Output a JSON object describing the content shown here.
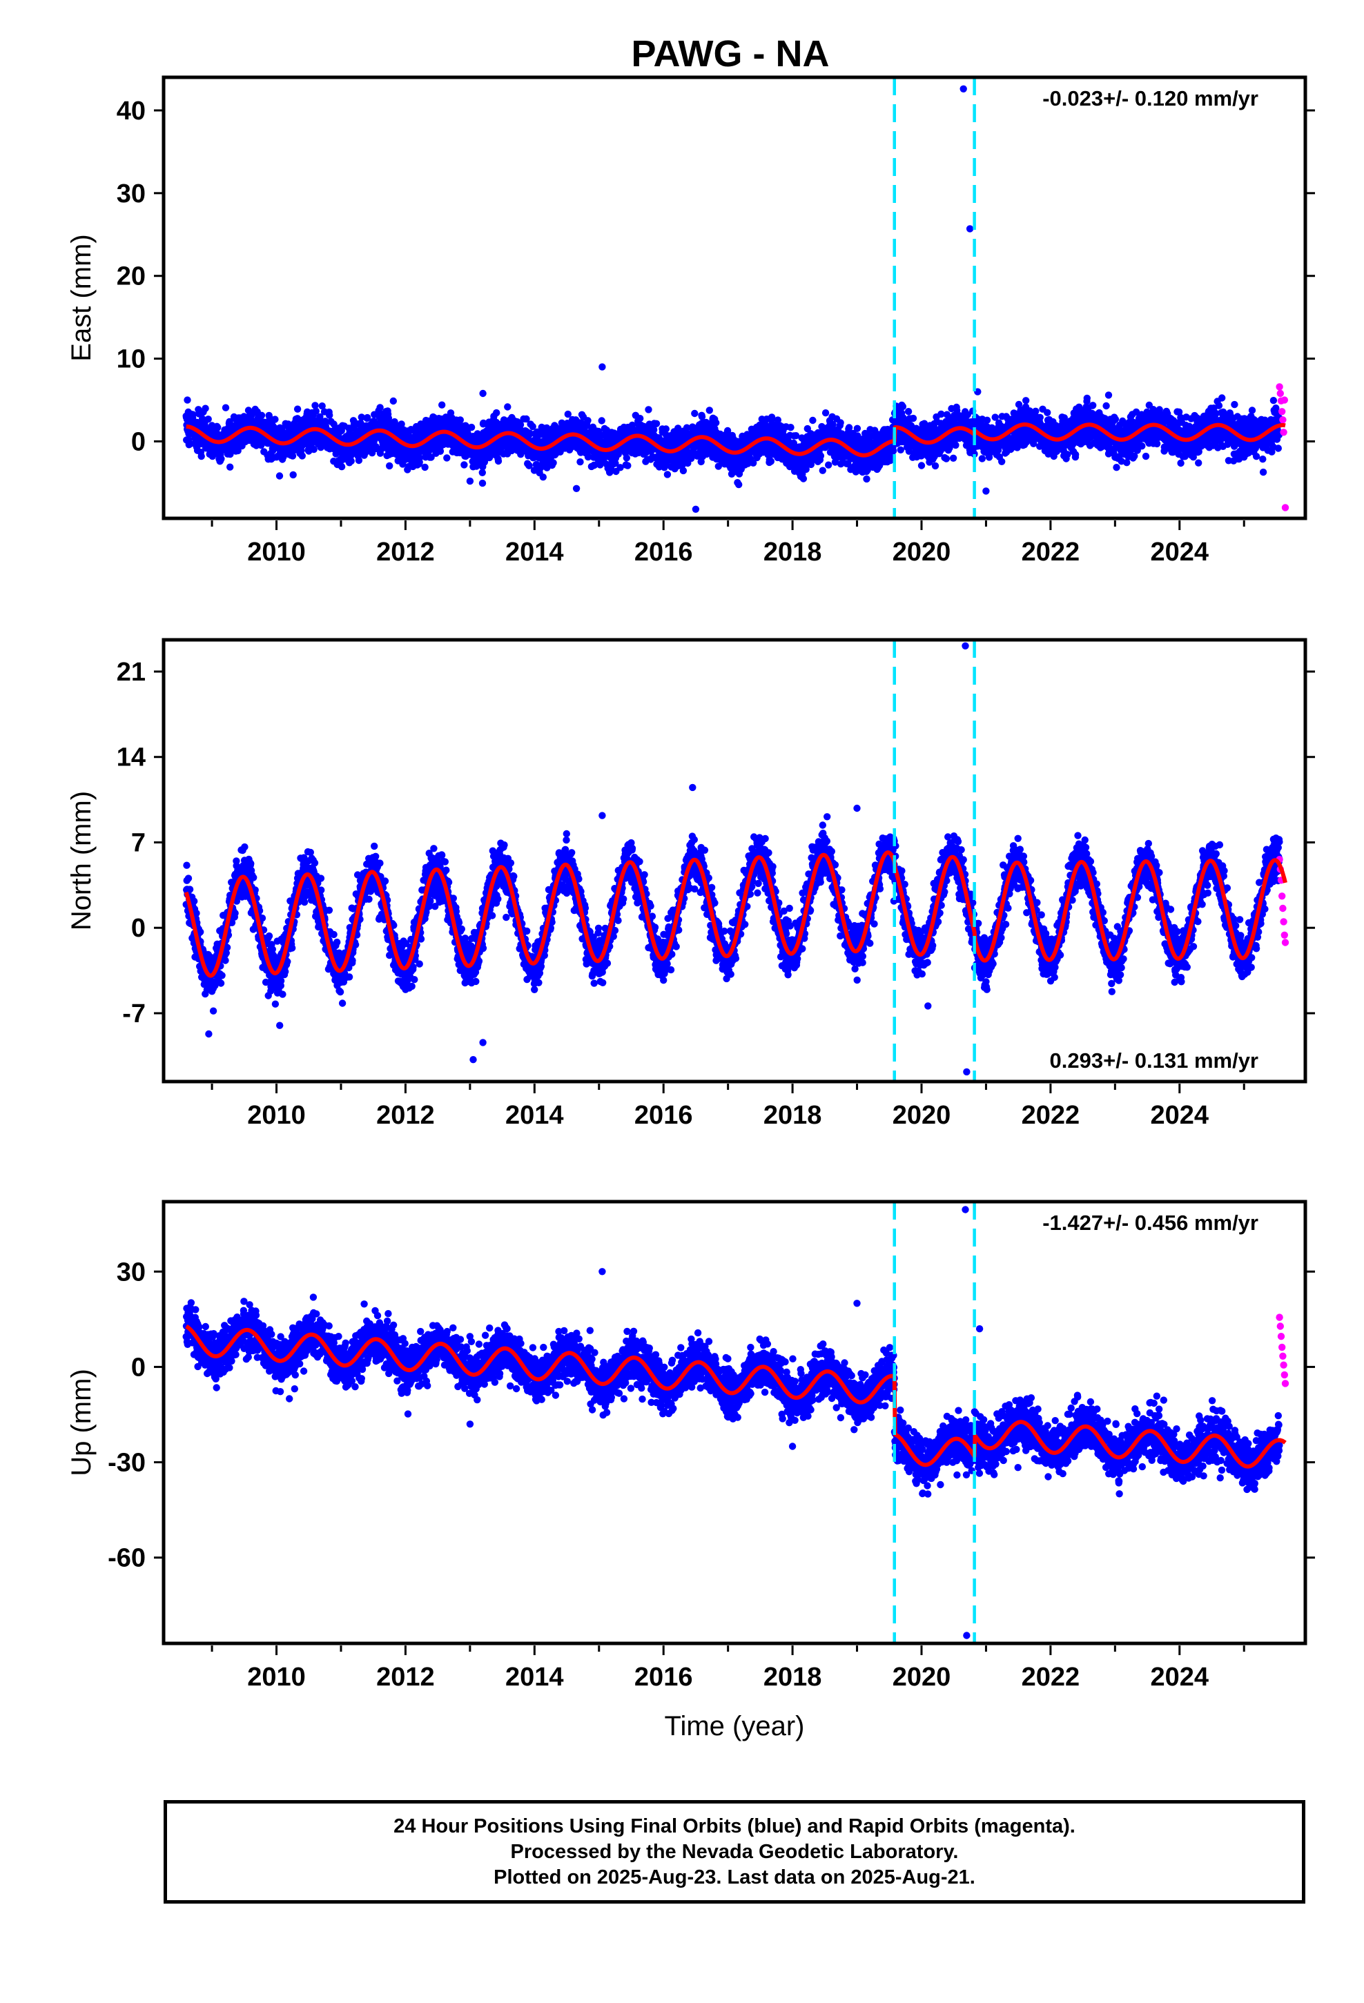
{
  "chart_data": {
    "type": "scatter",
    "title": "PAWG - NA",
    "xlabel": "Time (year)",
    "xlim": [
      2008.25,
      2025.95
    ],
    "x_ticks": [
      2010,
      2012,
      2014,
      2016,
      2018,
      2020,
      2022,
      2024
    ],
    "x_tick_labels": [
      "2010",
      "2012",
      "2014",
      "2016",
      "2018",
      "2020",
      "2022",
      "2024"
    ],
    "data_start": 2008.6,
    "rapid_start": 2025.55,
    "data_end": 2025.64,
    "offset_epochs": [
      2019.58,
      2020.82
    ],
    "series": [
      {
        "name": "Final Orbits",
        "color": "#0000ff"
      },
      {
        "name": "Rapid Orbits",
        "color": "#ff00ff"
      }
    ],
    "model_color": "#ff0000",
    "offset_line_color": "#00e5ff",
    "panels": [
      {
        "ylabel": "East (mm)",
        "ylim": [
          -9.3,
          44
        ],
        "y_ticks": [
          0,
          10,
          20,
          30,
          40
        ],
        "y_tick_labels": [
          "0",
          "10",
          "20",
          "30",
          "40"
        ],
        "rate_label": "-0.023+/- 0.120 mm/yr",
        "rate_position": "top-right",
        "model": {
          "segments": [
            {
              "start": 2008.6,
              "end": 2019.58,
              "a": 0.9,
              "b": -0.16
            },
            {
              "start": 2019.58,
              "end": 2020.82,
              "a": 1.9,
              "b": -0.1
            },
            {
              "start": 2020.82,
              "end": 2025.64,
              "a": 1.4,
              "b": -0.02
            }
          ],
          "annual_amplitude": 0.9,
          "annual_phase": 0.6
        },
        "scatter_sd": 1.15,
        "outliers": [
          [
            2020.65,
            42.6
          ],
          [
            2020.75,
            25.7
          ],
          [
            2020.87,
            6.0
          ],
          [
            2015.05,
            9.0
          ],
          [
            2013.2,
            5.8
          ],
          [
            2014.65,
            -5.7
          ],
          [
            2016.5,
            -8.2
          ],
          [
            2021.0,
            -6.0
          ],
          [
            2013.0,
            -4.8
          ],
          [
            2022.9,
            5.6
          ]
        ],
        "rapid_values": [
          6.6,
          5.8,
          4.9,
          3.6,
          2.6,
          1.1,
          5.0,
          -8.0
        ]
      },
      {
        "ylabel": "North (mm)",
        "ylim": [
          -12.6,
          23.6
        ],
        "y_ticks": [
          -7,
          0,
          7,
          14,
          21
        ],
        "y_tick_labels": [
          "-7",
          "0",
          "7",
          "14",
          "21"
        ],
        "rate_label": "0.293+/- 0.131 mm/yr",
        "rate_position": "bottom-right",
        "model": {
          "segments": [
            {
              "start": 2008.6,
              "end": 2019.58,
              "a": 0.0,
              "b": 0.2
            },
            {
              "start": 2019.58,
              "end": 2020.82,
              "a": 1.8,
              "b": 0.0
            },
            {
              "start": 2020.82,
              "end": 2025.64,
              "a": 0.7,
              "b": 0.05
            }
          ],
          "annual_amplitude": 4.0,
          "annual_phase": 0.48
        },
        "scatter_sd": 0.95,
        "outliers": [
          [
            2020.68,
            23.1
          ],
          [
            2020.7,
            -11.8
          ],
          [
            2016.45,
            11.5
          ],
          [
            2013.05,
            -10.8
          ],
          [
            2013.2,
            -9.4
          ],
          [
            2015.05,
            9.2
          ],
          [
            2008.95,
            -8.7
          ],
          [
            2010.05,
            -8.0
          ],
          [
            2019.0,
            9.8
          ],
          [
            2020.1,
            -6.4
          ]
        ],
        "rapid_values": [
          5.6,
          4.8,
          3.9,
          2.6,
          1.6,
          0.5,
          -0.6,
          -1.2
        ]
      },
      {
        "ylabel": "Up (mm)",
        "ylim": [
          -87,
          52
        ],
        "y_ticks": [
          -60,
          -30,
          0,
          30
        ],
        "y_tick_labels": [
          "-60",
          "-30",
          "0",
          "30"
        ],
        "rate_label": "-1.427+/- 0.456 mm/yr",
        "rate_position": "top-right",
        "model": {
          "segments": [
            {
              "start": 2008.6,
              "end": 2019.58,
              "a": 8.5,
              "b": -1.45
            },
            {
              "start": 2019.58,
              "end": 2020.82,
              "a": -8.0,
              "b": -1.6
            },
            {
              "start": 2020.82,
              "end": 2025.64,
              "a": -3.3,
              "b": -1.43
            }
          ],
          "annual_amplitude": 4.5,
          "annual_phase": 0.55
        },
        "scatter_sd": 3.6,
        "outliers": [
          [
            2020.68,
            49.5
          ],
          [
            2020.7,
            -84.5
          ],
          [
            2015.05,
            30.0
          ],
          [
            2020.55,
            -34.0
          ],
          [
            2019.0,
            20.0
          ],
          [
            2020.45,
            -24.0
          ],
          [
            2013.0,
            -18.0
          ],
          [
            2023.3,
            -25.0
          ],
          [
            2018.0,
            -25.0
          ],
          [
            2010.2,
            -10.0
          ],
          [
            2020.9,
            12.0
          ]
        ],
        "rapid_values": [
          15.6,
          12.8,
          9.6,
          6.2,
          3.4,
          0.6,
          -2.5,
          -5.2
        ]
      }
    ],
    "footer_lines": [
      "24 Hour Positions Using Final Orbits (blue) and Rapid Orbits (magenta).",
      "Processed by the Nevada Geodetic Laboratory.",
      "Plotted on 2025-Aug-23. Last data on 2025-Aug-21."
    ]
  }
}
